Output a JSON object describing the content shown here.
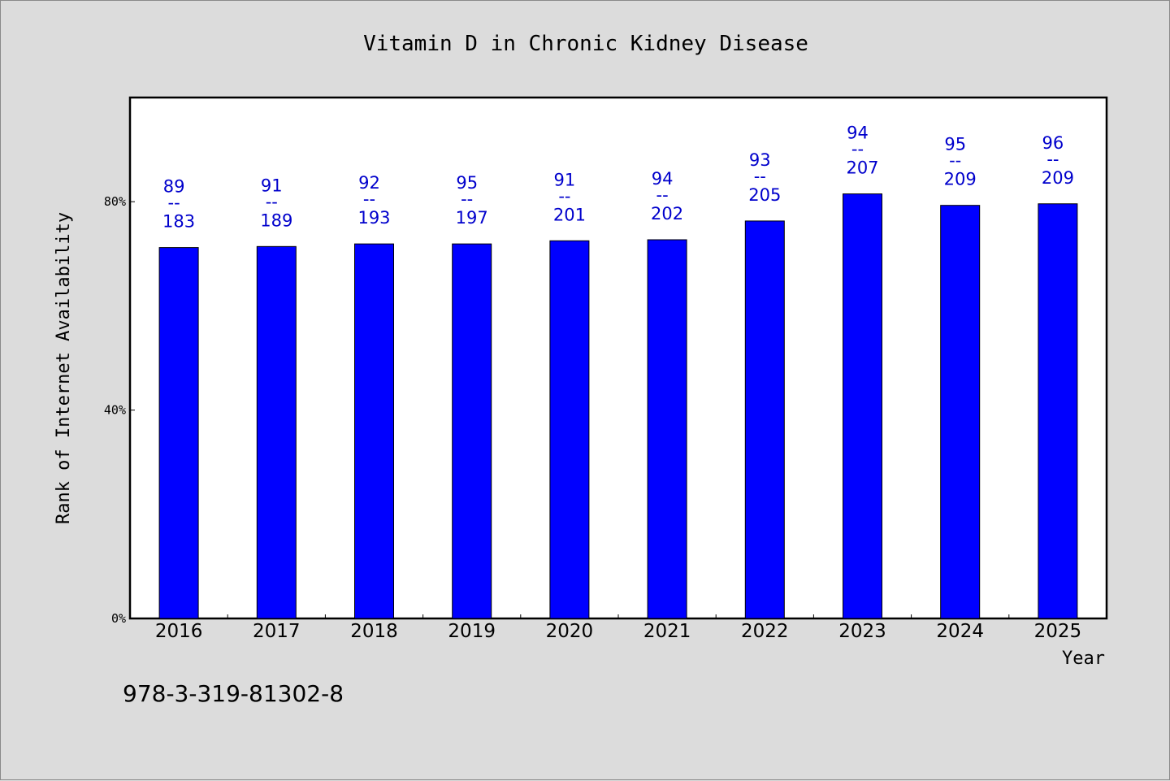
{
  "chart_data": {
    "type": "bar",
    "title": "Vitamin D in Chronic Kidney Disease",
    "xlabel": "Year",
    "ylabel": "Rank of Internet Availability",
    "categories": [
      "2016",
      "2017",
      "2018",
      "2019",
      "2020",
      "2021",
      "2022",
      "2023",
      "2024",
      "2025"
    ],
    "values": [
      71.2,
      71.4,
      71.9,
      71.9,
      72.5,
      72.7,
      76.3,
      81.5,
      79.3,
      79.6
    ],
    "numerators": [
      89,
      91,
      92,
      95,
      91,
      94,
      93,
      94,
      95,
      96
    ],
    "denominators": [
      183,
      189,
      193,
      197,
      201,
      202,
      205,
      207,
      209,
      209
    ],
    "label_separator": "--",
    "ylim": [
      0,
      100
    ],
    "yticks": [
      0,
      40,
      80
    ],
    "ytick_labels": [
      "0%",
      "40%",
      "80%"
    ],
    "bar_color": "#0000ff",
    "label_color": "#0000cc",
    "plot_background": "#ffffff",
    "page_background": "#dcdcdc",
    "grid": false,
    "legend": "none"
  },
  "footer": {
    "isbn": "978-3-319-81302-8"
  }
}
